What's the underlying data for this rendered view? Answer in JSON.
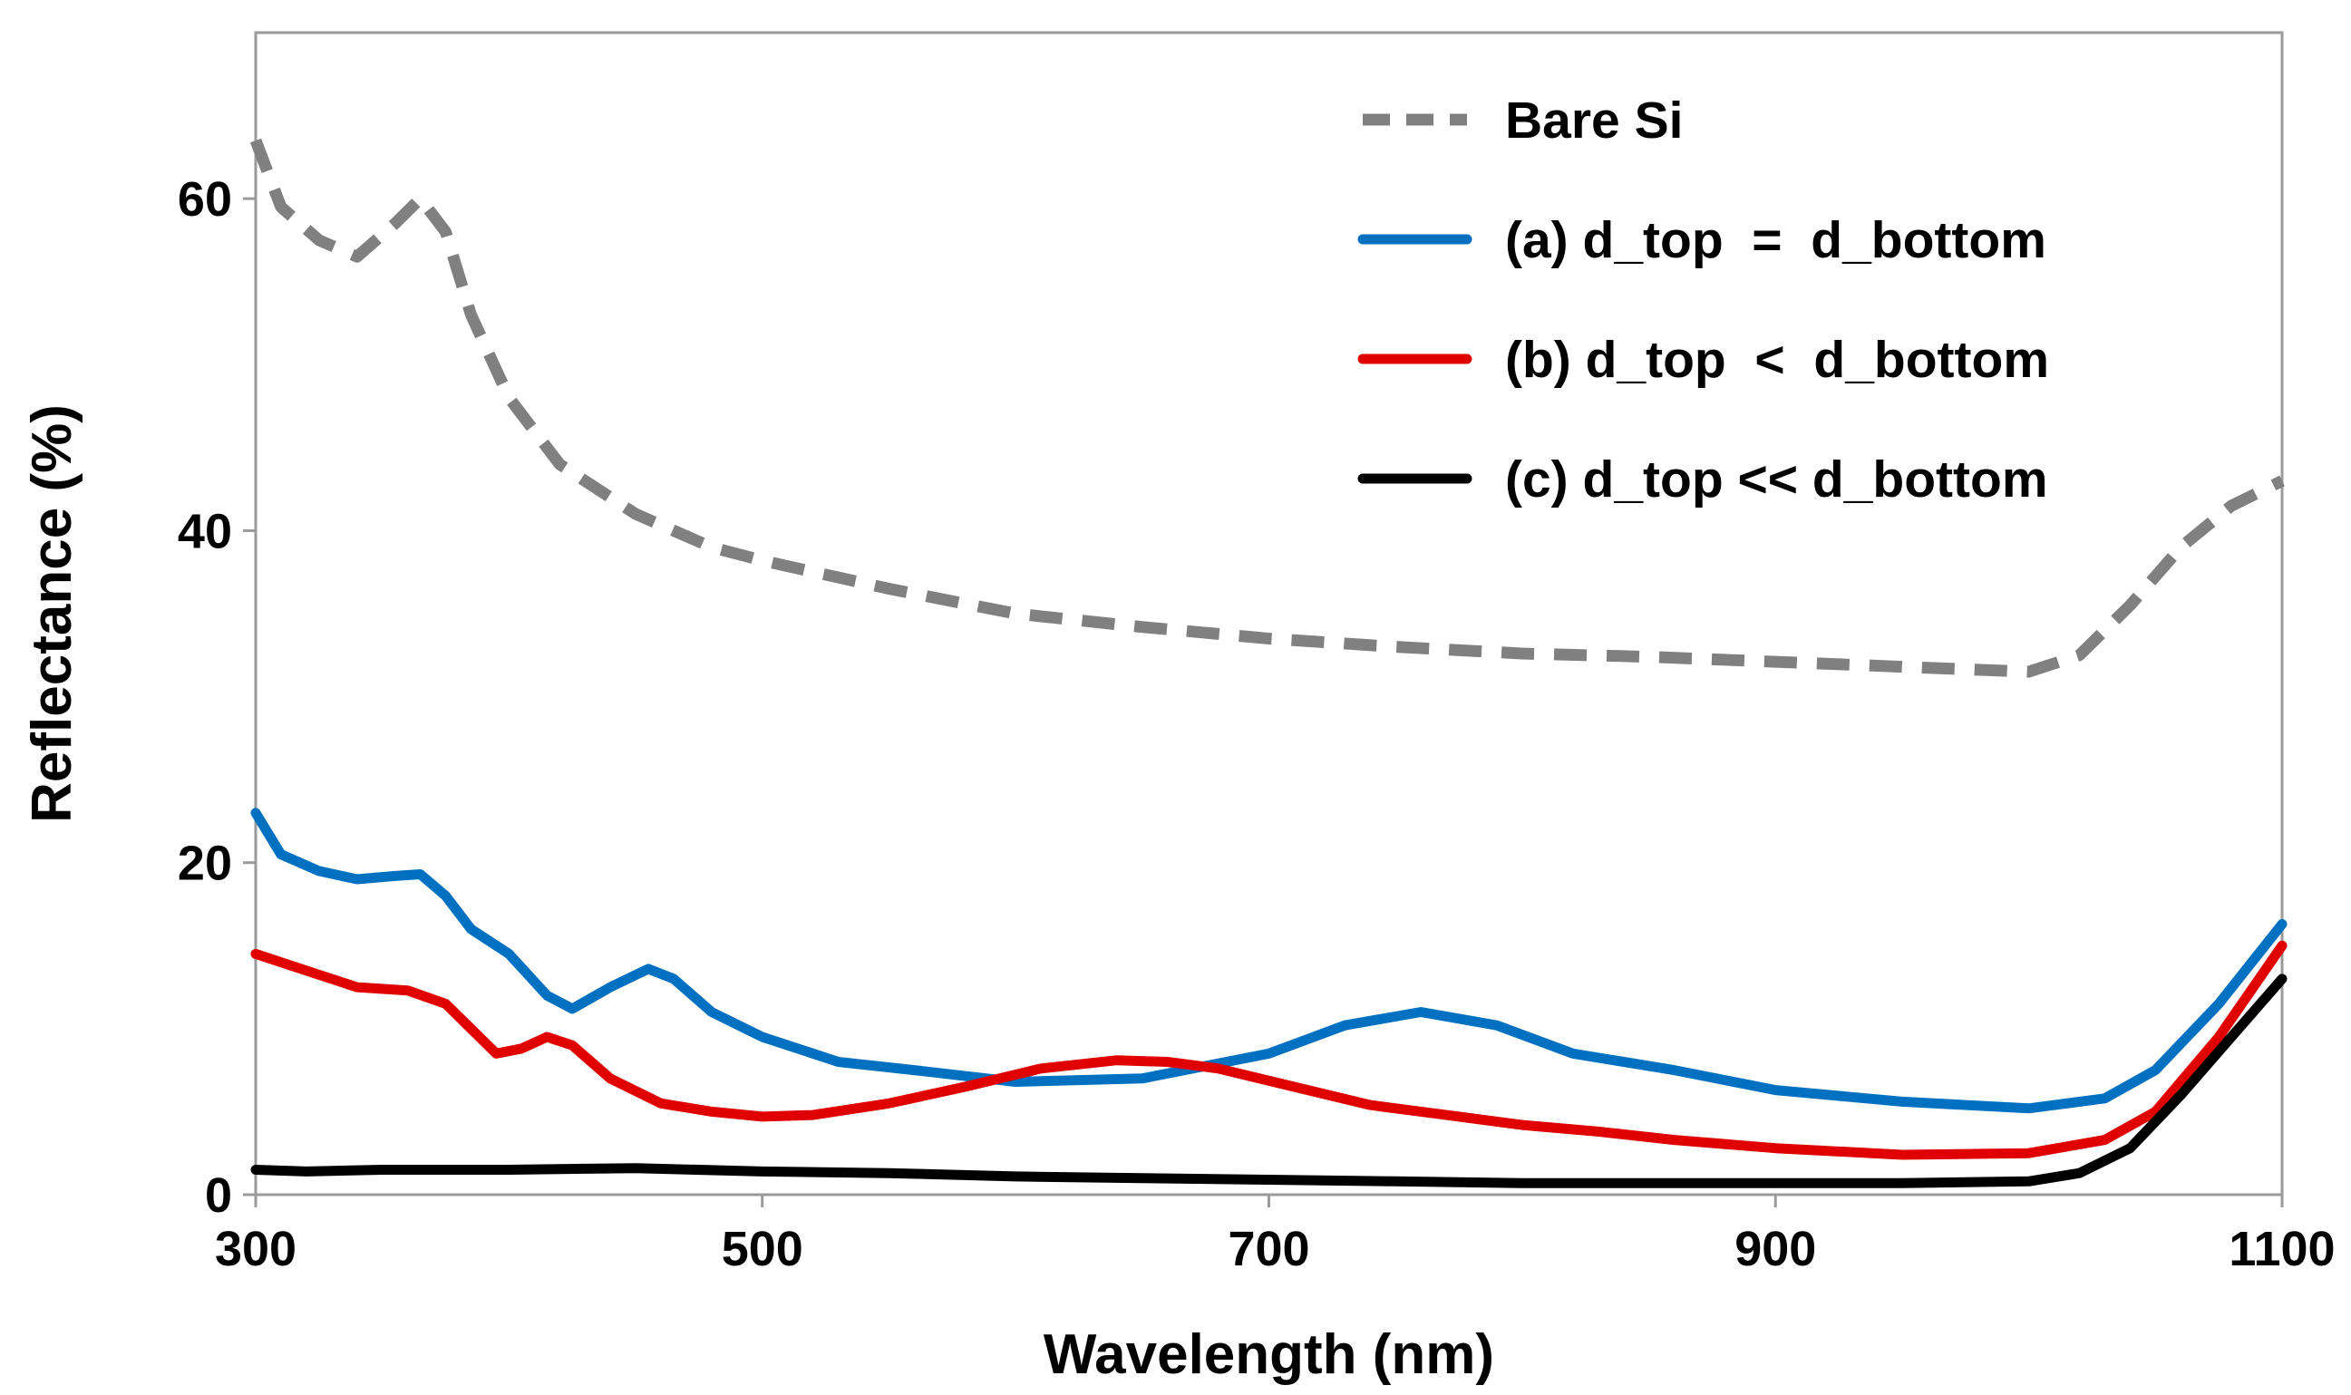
{
  "chart_data": {
    "type": "line",
    "xlabel": "Wavelength (nm)",
    "ylabel": "Reflectance (%)",
    "xlim": [
      300,
      1100
    ],
    "ylim": [
      0,
      70
    ],
    "xticks": [
      300,
      500,
      700,
      900,
      1100
    ],
    "yticks": [
      0,
      20,
      40,
      60
    ],
    "grid": false,
    "legend_position": "top-right",
    "series": [
      {
        "name": "Bare Si",
        "color": "#808080",
        "style": "dashed",
        "x": [
          300,
          310,
          325,
          340,
          355,
          365,
          375,
          385,
          400,
          420,
          450,
          480,
          500,
          550,
          600,
          650,
          700,
          750,
          800,
          850,
          900,
          950,
          1000,
          1020,
          1040,
          1060,
          1080,
          1100
        ],
        "y": [
          63.5,
          59.5,
          57.5,
          56.5,
          58.5,
          60,
          58,
          53,
          48,
          44,
          41,
          39,
          38.2,
          36.5,
          35,
          34.2,
          33.5,
          33,
          32.6,
          32.4,
          32.1,
          31.8,
          31.5,
          32.5,
          35.5,
          39,
          41.5,
          43
        ]
      },
      {
        "name": "(a) d_top  =  d_bottom",
        "color": "#0070C0",
        "style": "solid",
        "x": [
          300,
          310,
          325,
          340,
          355,
          365,
          375,
          385,
          400,
          415,
          425,
          440,
          455,
          465,
          480,
          500,
          530,
          560,
          600,
          650,
          700,
          730,
          760,
          790,
          820,
          860,
          900,
          950,
          1000,
          1030,
          1050,
          1075,
          1100
        ],
        "y": [
          23,
          20.5,
          19.5,
          19,
          19.2,
          19.3,
          18,
          16,
          14.5,
          12,
          11.2,
          12.5,
          13.6,
          13,
          11,
          9.5,
          8,
          7.5,
          6.8,
          7,
          8.5,
          10.2,
          11,
          10.2,
          8.5,
          7.5,
          6.3,
          5.6,
          5.2,
          5.8,
          7.5,
          11.5,
          16.3
        ]
      },
      {
        "name": "(b) d_top  <  d_bottom",
        "color": "#E00000",
        "style": "solid",
        "x": [
          300,
          320,
          340,
          360,
          375,
          385,
          395,
          405,
          415,
          425,
          440,
          460,
          480,
          500,
          520,
          550,
          580,
          610,
          640,
          660,
          680,
          710,
          740,
          770,
          800,
          830,
          860,
          900,
          950,
          1000,
          1030,
          1050,
          1075,
          1100
        ],
        "y": [
          14.5,
          13.5,
          12.5,
          12.3,
          11.5,
          10,
          8.5,
          8.8,
          9.5,
          9,
          7,
          5.5,
          5,
          4.7,
          4.8,
          5.5,
          6.5,
          7.6,
          8.1,
          8,
          7.6,
          6.5,
          5.4,
          4.8,
          4.2,
          3.8,
          3.3,
          2.8,
          2.4,
          2.5,
          3.3,
          5,
          9.5,
          15
        ]
      },
      {
        "name": "(c) d_top << d_bottom",
        "color": "#000000",
        "style": "solid",
        "x": [
          300,
          320,
          350,
          400,
          450,
          500,
          550,
          600,
          650,
          700,
          750,
          800,
          850,
          900,
          950,
          1000,
          1020,
          1040,
          1060,
          1080,
          1100
        ],
        "y": [
          1.5,
          1.4,
          1.5,
          1.5,
          1.6,
          1.4,
          1.3,
          1.1,
          1,
          0.9,
          0.8,
          0.7,
          0.7,
          0.7,
          0.7,
          0.8,
          1.3,
          2.8,
          6,
          9.5,
          13
        ]
      }
    ]
  }
}
